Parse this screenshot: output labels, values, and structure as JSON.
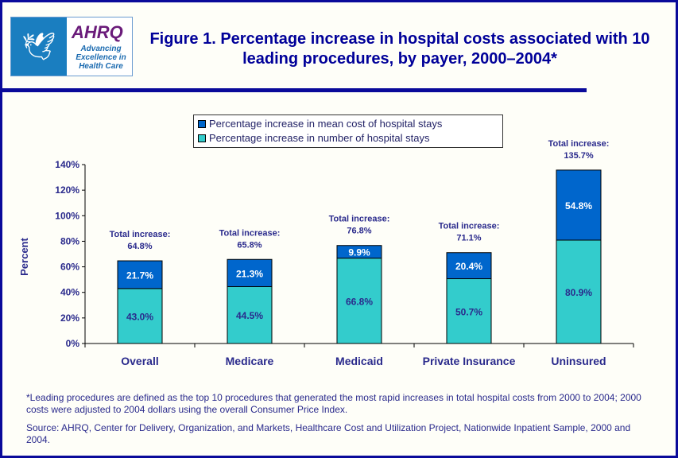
{
  "header": {
    "logo_text": "AHRQ",
    "logo_tagline": "Advancing Excellence in Health Care",
    "title": "Figure 1. Percentage increase in hospital costs associated with 10 leading procedures, by payer, 2000–2004*"
  },
  "colors": {
    "mean_cost": "#0066cc",
    "number_stays": "#33cccc",
    "text": "#2a2a8c",
    "title": "#000099"
  },
  "chart_data": {
    "type": "bar",
    "stacked": true,
    "categories": [
      "Overall",
      "Medicare",
      "Medicaid",
      "Private Insurance",
      "Uninsured"
    ],
    "series": [
      {
        "name": "Percentage increase in number of hospital stays",
        "values": [
          43.0,
          44.5,
          66.8,
          50.7,
          80.9
        ],
        "labels": [
          "43.0%",
          "44.5%",
          "66.8%",
          "50.7%",
          "80.9%"
        ]
      },
      {
        "name": "Percentage increase in mean cost of hospital stays",
        "values": [
          21.7,
          21.3,
          9.9,
          20.4,
          54.8
        ],
        "labels": [
          "21.7%",
          "21.3%",
          "9.9%",
          "20.4%",
          "54.8%"
        ]
      }
    ],
    "totals_label": "Total increase:",
    "totals": [
      "64.8%",
      "65.8%",
      "76.8%",
      "71.1%",
      "135.7%"
    ],
    "ylabel": "Percent",
    "xlabel": "",
    "ylim": [
      0,
      140
    ],
    "yticks": [
      "0%",
      "20%",
      "40%",
      "60%",
      "80%",
      "100%",
      "120%",
      "140%"
    ],
    "legend_position": "top",
    "grid": false
  },
  "footnotes": {
    "note": "*Leading procedures are defined as the top 10 procedures that generated the most rapid increases in total hospital costs from 2000 to 2004; 2000 costs were adjusted to 2004 dollars using the overall Consumer Price Index.",
    "source": "Source: AHRQ, Center for Delivery, Organization, and Markets, Healthcare Cost and Utilization Project, Nationwide Inpatient Sample, 2000 and 2004."
  }
}
